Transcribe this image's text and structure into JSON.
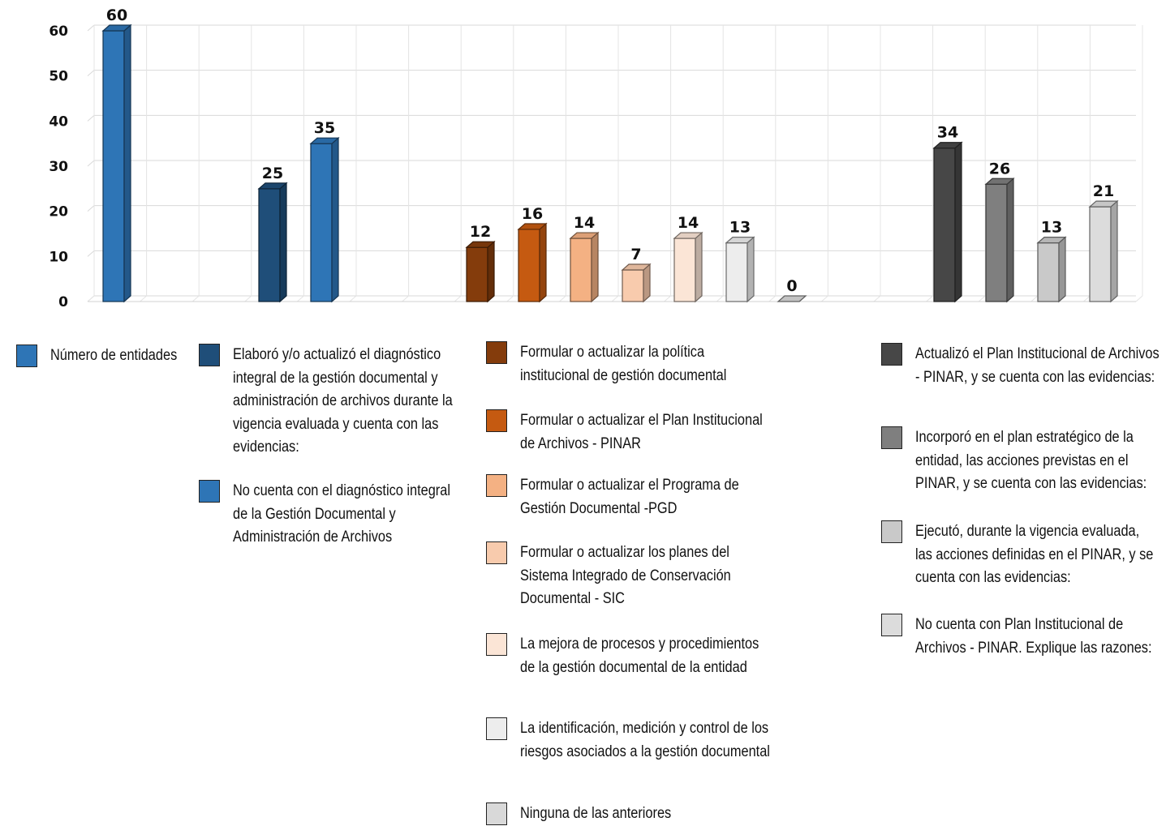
{
  "chart_data": {
    "type": "bar",
    "ylim": [
      0,
      60
    ],
    "yticks": [
      0,
      10,
      20,
      30,
      40,
      50,
      60
    ],
    "grid": true,
    "legend_position": "bottom",
    "series": [
      {
        "name": "Número de entidades",
        "value": 60,
        "color": "#2E75B6"
      },
      {
        "name": "Elaboró  y/o actualizó el diagnóstico integral de la gestión documental y administración de archivos durante la vigencia evaluada y cuenta con las evidencias:",
        "value": 25,
        "color": "#1F4E79"
      },
      {
        "name": "No cuenta con el diagnóstico integral de la Gestión Documental y Administración de Archivos",
        "value": 35,
        "color": "#2E75B6"
      },
      {
        "name": "Formular o actualizar la política institucional de gestión documental",
        "value": 12,
        "color": "#843C0C"
      },
      {
        "name": "Formular o actualizar el Plan Institucional de Archivos - PINAR",
        "value": 16,
        "color": "#C55A11"
      },
      {
        "name": "Formular o actualizar el Programa de Gestión Documental -PGD",
        "value": 14,
        "color": "#F4B183"
      },
      {
        "name": "Formular o actualizar los planes del Sistema Integrado de Conservación Documental - SIC",
        "value": 7,
        "color": "#F8CBAD"
      },
      {
        "name": "La mejora de procesos y procedimientos de la gestión documental de la entidad",
        "value": 14,
        "color": "#FBE5D6"
      },
      {
        "name": "La identificación, medición y control de los riesgos asociados a la gestión documental",
        "value": 13,
        "color": "#EDEDED"
      },
      {
        "name": "Ninguna de las anteriores",
        "value": 0,
        "color": "#D9D9D9"
      },
      {
        "name": "Actualizó el Plan Institucional de Archivos - PINAR, y se cuenta con las evidencias:",
        "value": 34,
        "color": "#474747"
      },
      {
        "name": "Incorporó en el plan estratégico de la entidad, las acciones previstas en el PINAR, y se cuenta con las evidencias:",
        "value": 26,
        "color": "#7F7F7F"
      },
      {
        "name": "Ejecutó, durante la vigencia evaluada, las acciones definidas en el PINAR, y se cuenta con las evidencias:",
        "value": 13,
        "color": "#C9C9C9"
      },
      {
        "name": "No cuenta con Plan Institucional de Archivos - PINAR. Explique las razones:",
        "value": 21,
        "color": "#DCDCDC"
      }
    ]
  }
}
